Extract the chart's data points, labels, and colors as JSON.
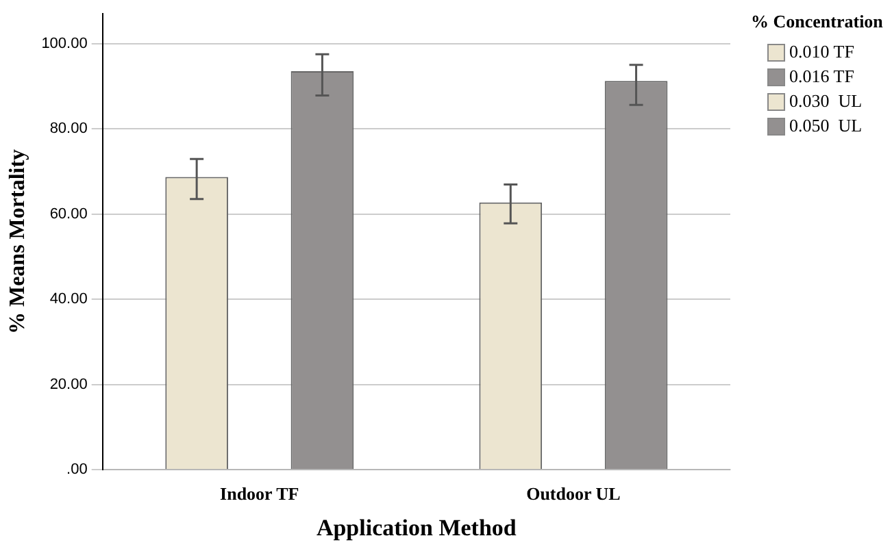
{
  "chart_data": {
    "type": "bar",
    "xlabel": "Application Method",
    "ylabel": "% Means Mortality",
    "legend_title": "% Concentration",
    "categories": [
      "Indoor TF",
      "Outdoor UL"
    ],
    "series": [
      {
        "name": "0.010 TF",
        "color": "#ece5d0",
        "values": [
          68.7,
          null
        ],
        "errors": [
          [
            63.5,
            72.9
          ],
          null
        ]
      },
      {
        "name": "0.016 TF",
        "color": "#939090",
        "values": [
          93.5,
          null
        ],
        "errors": [
          [
            87.8,
            97.5
          ],
          null
        ]
      },
      {
        "name": "0.030  UL",
        "color": "#ece5d0",
        "values": [
          null,
          62.7
        ],
        "errors": [
          null,
          [
            57.8,
            66.9
          ]
        ]
      },
      {
        "name": "0.050  UL",
        "color": "#939090",
        "values": [
          null,
          91.2
        ],
        "errors": [
          null,
          [
            85.6,
            95
          ]
        ]
      }
    ],
    "ylim": [
      0,
      107
    ],
    "yticks": [
      {
        "value": 0,
        "label": ".00"
      },
      {
        "value": 20,
        "label": "20.00"
      },
      {
        "value": 40,
        "label": "40.00"
      },
      {
        "value": 60,
        "label": "60.00"
      },
      {
        "value": 80,
        "label": "80.00"
      },
      {
        "value": 100,
        "label": "100.00"
      }
    ],
    "grid": "y",
    "legend": "top right"
  }
}
